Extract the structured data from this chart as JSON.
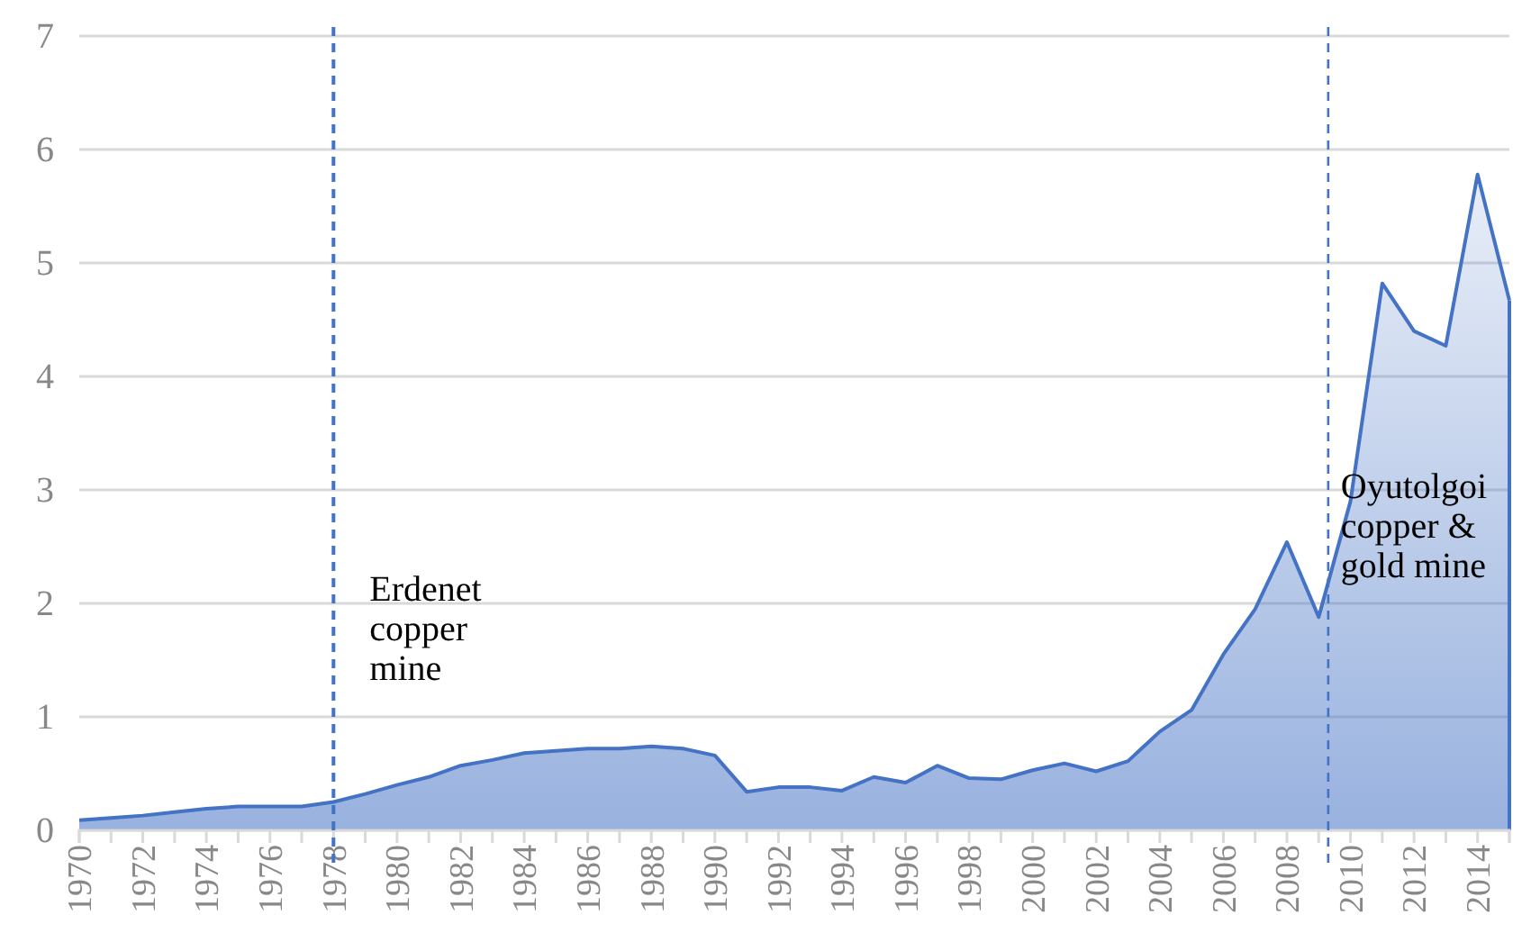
{
  "chart_data": {
    "type": "area",
    "x": [
      1970,
      1971,
      1972,
      1973,
      1974,
      1975,
      1976,
      1977,
      1978,
      1979,
      1980,
      1981,
      1982,
      1983,
      1984,
      1985,
      1986,
      1987,
      1988,
      1989,
      1990,
      1991,
      1992,
      1993,
      1994,
      1995,
      1996,
      1997,
      1998,
      1999,
      2000,
      2001,
      2002,
      2003,
      2004,
      2005,
      2006,
      2007,
      2008,
      2009,
      2010,
      2011,
      2012,
      2013,
      2014,
      2015
    ],
    "series": [
      {
        "color": "#4472c4",
        "values": [
          0.09,
          0.11,
          0.13,
          0.16,
          0.19,
          0.21,
          0.21,
          0.21,
          0.25,
          0.32,
          0.4,
          0.47,
          0.57,
          0.62,
          0.68,
          0.7,
          0.72,
          0.72,
          0.74,
          0.72,
          0.66,
          0.34,
          0.38,
          0.38,
          0.35,
          0.47,
          0.42,
          0.57,
          0.46,
          0.45,
          0.53,
          0.59,
          0.52,
          0.61,
          0.87,
          1.06,
          1.55,
          1.95,
          2.54,
          1.88,
          2.9,
          4.82,
          4.4,
          4.27,
          5.78,
          4.67
        ]
      }
    ],
    "xlim": [
      1970,
      2015
    ],
    "xticks": [
      1970,
      {
        "value": 1971,
        "label": null
      },
      1972,
      {
        "value": 1973,
        "label": null
      },
      1974,
      {
        "value": 1975,
        "label": null
      },
      1976,
      {
        "value": 1977,
        "label": null
      },
      1978,
      {
        "value": 1979,
        "label": null
      },
      1980,
      {
        "value": 1981,
        "label": null
      },
      1982,
      {
        "value": 1983,
        "label": null
      },
      1984,
      {
        "value": 1985,
        "label": null
      },
      1986,
      {
        "value": 1987,
        "label": null
      },
      1988,
      {
        "value": 1989,
        "label": null
      },
      1990,
      {
        "value": 1991,
        "label": null
      },
      1992,
      {
        "value": 1993,
        "label": null
      },
      1994,
      {
        "value": 1995,
        "label": null
      },
      1996,
      {
        "value": 1997,
        "label": null
      },
      1998,
      {
        "value": 1999,
        "label": null
      },
      2000,
      {
        "value": 2001,
        "label": null
      },
      2002,
      {
        "value": 2003,
        "label": null
      },
      2004,
      {
        "value": 2005,
        "label": null
      },
      2006,
      {
        "value": 2007,
        "label": null
      },
      2008,
      {
        "value": 2009,
        "label": null
      },
      2010,
      {
        "value": 2011,
        "label": null
      },
      2012,
      {
        "value": 2013,
        "label": null
      },
      2014,
      {
        "value": 2015,
        "label": null
      }
    ],
    "ylim": [
      0,
      7
    ],
    "yticks": [
      0,
      1,
      2,
      3,
      4,
      5,
      6,
      7
    ],
    "grid": "y",
    "ref_lines": [
      {
        "axis": "x",
        "value": 1978,
        "label": "Erdenet copper mine",
        "color": "#4472c4",
        "line_style": "dashed"
      },
      {
        "axis": "x",
        "value": 2009.3,
        "label": "Oyutolgoi copper & gold mine",
        "color": "#4472c4",
        "line_style": "dashed"
      }
    ]
  }
}
